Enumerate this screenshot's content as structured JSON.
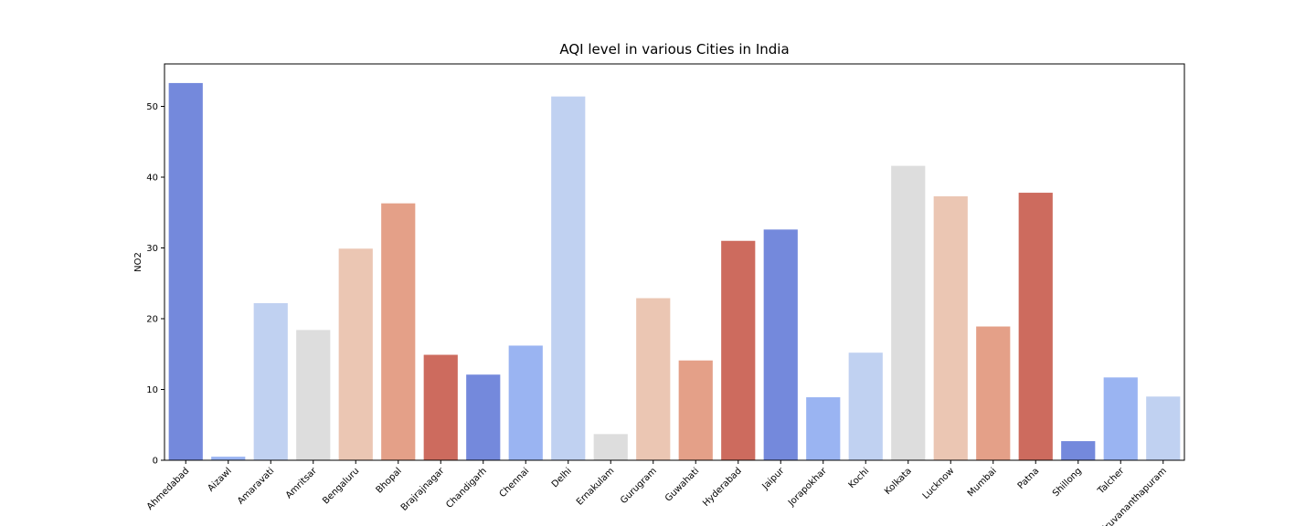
{
  "chart_data": {
    "type": "bar",
    "title": "AQI level in various Cities in India",
    "xlabel": "",
    "ylabel": "NO2",
    "ylim": [
      0,
      56
    ],
    "yticks": [
      0,
      10,
      20,
      30,
      40,
      50
    ],
    "grid": false,
    "categories": [
      "Ahmedabad",
      "Aizawl",
      "Amaravati",
      "Amritsar",
      "Bengaluru",
      "Bhopal",
      "Brajrajnagar",
      "Chandigarh",
      "Chennai",
      "Delhi",
      "Ernakulam",
      "Gurugram",
      "Guwahati",
      "Hyderabad",
      "Jaipur",
      "Jorapokhar",
      "Kochi",
      "Kolkata",
      "Lucknow",
      "Mumbai",
      "Patna",
      "Shillong",
      "Talcher",
      "Thiruvananthapuram"
    ],
    "values": [
      53.3,
      0.5,
      22.2,
      18.4,
      29.9,
      36.3,
      14.9,
      12.1,
      16.2,
      51.4,
      3.7,
      22.9,
      14.1,
      31.0,
      32.6,
      8.9,
      15.2,
      41.6,
      37.3,
      18.9,
      37.8,
      2.7,
      11.7,
      9.0
    ],
    "colors": [
      "#7489dc",
      "#9ab4f2",
      "#c0d1f1",
      "#dddddd",
      "#ebc6b3",
      "#e4a088",
      "#cd6b5e",
      "#7489dc",
      "#9ab4f2",
      "#c0d1f1",
      "#dddddd",
      "#ebc6b3",
      "#e4a088",
      "#cd6b5e",
      "#7489dc",
      "#9ab4f2",
      "#c0d1f1",
      "#dddddd",
      "#ebc6b3",
      "#e4a088",
      "#cd6b5e",
      "#7489dc",
      "#9ab4f2",
      "#c0d1f1"
    ]
  }
}
